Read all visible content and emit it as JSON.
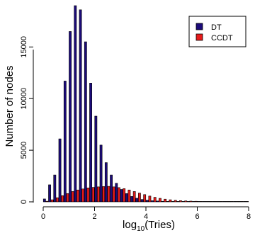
{
  "chart_data": {
    "type": "bar",
    "xlabel_main": "log",
    "xlabel_sub": "10",
    "xlabel_rest": "(Tries)",
    "ylabel": "Number of nodes",
    "xlim": [
      0,
      8
    ],
    "ylim": [
      0,
      19000
    ],
    "x_ticks": [
      "0",
      "2",
      "4",
      "6",
      "8"
    ],
    "x_tick_values": [
      0,
      2,
      4,
      6,
      8
    ],
    "y_ticks": [
      "0",
      "5000",
      "10000",
      "15000"
    ],
    "y_tick_values": [
      0,
      5000,
      10000,
      15000
    ],
    "x": [
      0.1,
      0.3,
      0.5,
      0.7,
      0.9,
      1.1,
      1.3,
      1.5,
      1.7,
      1.9,
      2.1,
      2.3,
      2.5,
      2.7,
      2.9,
      3.1,
      3.3,
      3.5,
      3.7,
      3.9,
      4.1,
      4.3,
      4.5,
      4.7,
      4.9,
      5.1,
      5.3,
      5.5,
      5.7,
      5.9,
      6.1,
      6.3,
      6.5,
      6.7,
      6.9,
      7.1,
      7.3,
      7.5,
      7.7,
      7.9
    ],
    "series": [
      {
        "name": "DT",
        "color": "#1c0b7a",
        "values": [
          280,
          1650,
          2600,
          6100,
          11700,
          16500,
          19000,
          18600,
          15500,
          11500,
          8300,
          5500,
          3800,
          2600,
          1800,
          1200,
          800,
          520,
          350,
          230,
          160,
          110,
          80,
          55,
          40,
          28,
          20,
          15,
          11,
          8,
          6,
          5,
          4,
          3,
          2,
          2,
          1,
          1,
          1,
          1
        ]
      },
      {
        "name": "CCDT",
        "color": "#e61a1a",
        "values": [
          60,
          200,
          400,
          600,
          800,
          1000,
          1150,
          1250,
          1350,
          1400,
          1450,
          1480,
          1500,
          1450,
          1380,
          1280,
          1150,
          1000,
          850,
          700,
          560,
          440,
          340,
          260,
          200,
          150,
          115,
          90,
          70,
          55,
          43,
          34,
          27,
          21,
          17,
          14,
          11,
          9,
          7,
          6
        ]
      }
    ],
    "legend_position": "top-right"
  }
}
